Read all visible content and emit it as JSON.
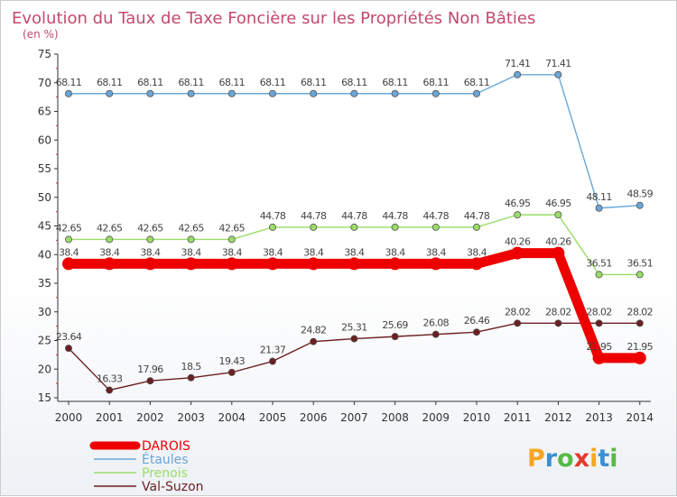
{
  "chart_data": {
    "type": "line",
    "title": "Evolution du Taux de Taxe Foncière sur les Propriétés Non Bâties",
    "subtitle": "(en %)",
    "x": [
      "2000",
      "2001",
      "2002",
      "2003",
      "2004",
      "2005",
      "2006",
      "2007",
      "2008",
      "2009",
      "2010",
      "2011",
      "2012",
      "2013",
      "2014"
    ],
    "ylim": [
      15,
      75
    ],
    "yticks": [
      15,
      20,
      25,
      30,
      35,
      40,
      45,
      50,
      55,
      60,
      65,
      70,
      75
    ],
    "grid": false,
    "legend_position": "bottom-left",
    "series": [
      {
        "name": "DAROIS",
        "color": "#ee0000",
        "labels": [
          "38.4",
          "38.4",
          "38.4",
          "38.4",
          "38.4",
          "38.4",
          "38.4",
          "38.4",
          "38.4",
          "38.4",
          "38.4",
          "40.26",
          "40.26",
          "21.95",
          "21.95"
        ],
        "values": [
          38.4,
          38.4,
          38.4,
          38.4,
          38.4,
          38.4,
          38.4,
          38.4,
          38.4,
          38.4,
          38.4,
          40.26,
          40.26,
          21.95,
          21.95
        ]
      },
      {
        "name": "Étaules",
        "color": "#6aa6d6",
        "labels": [
          "68.11",
          "68.11",
          "68.11",
          "68.11",
          "68.11",
          "68.11",
          "68.11",
          "68.11",
          "68.11",
          "68.11",
          "68.11",
          "71.41",
          "71.41",
          "48.11",
          "48.59"
        ],
        "values": [
          68.11,
          68.11,
          68.11,
          68.11,
          68.11,
          68.11,
          68.11,
          68.11,
          68.11,
          68.11,
          68.11,
          71.41,
          71.41,
          48.11,
          48.59
        ]
      },
      {
        "name": "Prenois",
        "color": "#99dd66",
        "labels": [
          "42.65",
          "42.65",
          "42.65",
          "42.65",
          "42.65",
          "44.78",
          "44.78",
          "44.78",
          "44.78",
          "44.78",
          "44.78",
          "46.95",
          "46.95",
          "36.51",
          "36.51"
        ],
        "values": [
          42.65,
          42.65,
          42.65,
          42.65,
          42.65,
          44.78,
          44.78,
          44.78,
          44.78,
          44.78,
          44.78,
          46.95,
          46.95,
          36.51,
          36.51
        ]
      },
      {
        "name": "Val-Suzon",
        "color": "#6b1f22",
        "labels": [
          "23.64",
          "16.33",
          "17.96",
          "18.5",
          "19.43",
          "21.37",
          "24.82",
          "25.31",
          "25.69",
          "26.08",
          "26.46",
          "28.02",
          "28.02",
          "28.02",
          "28.02"
        ],
        "values": [
          23.64,
          16.33,
          17.96,
          18.5,
          19.43,
          21.37,
          24.82,
          25.31,
          25.69,
          26.08,
          26.46,
          28.02,
          28.02,
          28.02,
          28.02
        ]
      }
    ]
  },
  "brand": {
    "name": "Proxiti",
    "letters": [
      "P",
      "r",
      "o",
      "x",
      "i",
      "t",
      "i"
    ],
    "colors": [
      "#f6a623",
      "#3b8fd3",
      "#58b947",
      "#e23a2a",
      "#f6a623",
      "#3b8fd3",
      "#58b947"
    ]
  }
}
